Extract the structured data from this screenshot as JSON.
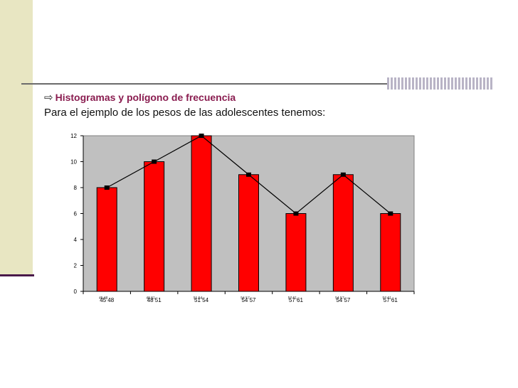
{
  "heading": {
    "arrow_icon": "arrow-right-icon",
    "text": "Histogramas y polígono de frecuencia"
  },
  "subtitle": "Para el ejemplo de los pesos de las adolescentes tenemos:",
  "chart_data": {
    "type": "bar",
    "categories": [
      "45 48",
      "48 51",
      "51 54",
      "54 57",
      "57 61",
      "54 57",
      "57 61"
    ],
    "category_overlays": [
      "45 48",
      "48 51",
      "51 54",
      "54 57",
      "57 61",
      "54 57",
      "57 61"
    ],
    "values": [
      8,
      10,
      12,
      9,
      6,
      9,
      6
    ],
    "polygon_values": [
      8,
      10,
      12,
      9,
      6,
      9,
      6
    ],
    "ylim": [
      0,
      12
    ],
    "yticks": [
      0,
      2,
      4,
      6,
      8,
      10,
      12
    ],
    "title": "",
    "xlabel": "",
    "ylabel": "",
    "grid": false,
    "colors": {
      "bar": "#ff0000",
      "plot_area": "#c0c0c0",
      "line": "#000000"
    }
  }
}
